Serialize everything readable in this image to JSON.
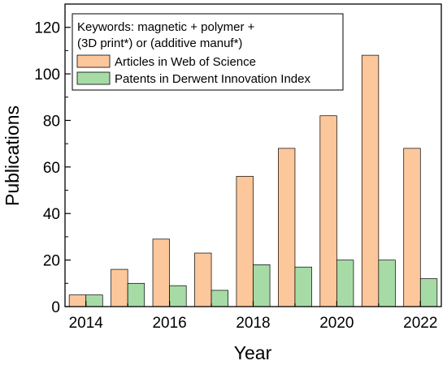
{
  "chart_data": {
    "type": "bar",
    "x": [
      2014,
      2015,
      2016,
      2017,
      2018,
      2019,
      2020,
      2021,
      2022
    ],
    "x_tick_labels": [
      "2014",
      "2016",
      "2018",
      "2020",
      "2022"
    ],
    "series": [
      {
        "name": "Articles in Web of Science",
        "color": "#fcc79b",
        "values": [
          5,
          16,
          29,
          23,
          56,
          68,
          82,
          108,
          68
        ]
      },
      {
        "name": "Patents in Derwent Innovation Index",
        "color": "#a6dba5",
        "values": [
          5,
          10,
          9,
          7,
          18,
          17,
          20,
          20,
          12
        ]
      }
    ],
    "xlabel": "Year",
    "ylabel": "Publications",
    "ylim": [
      0,
      130
    ],
    "y_ticks": [
      0,
      20,
      40,
      60,
      80,
      100,
      120
    ],
    "legend": {
      "title_line1": "Keywords: magnetic + polymer +",
      "title_line2": "(3D print*) or (additive manuf*)",
      "placement": "top-left"
    },
    "grid": false
  }
}
